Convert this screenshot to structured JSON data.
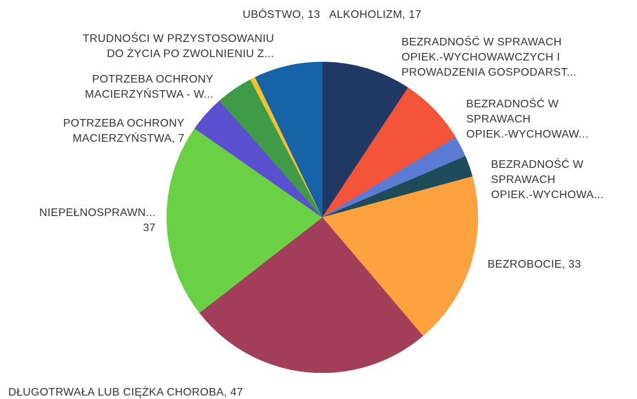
{
  "chart_data": {
    "type": "pie",
    "categories": [
      "ALKOHOLIZM, 17",
      "BEZRADNOŚĆ W SPRAWACH\nOPIEK.-WYCHOWAWCZYCH I\nPROWADZENIA GOSPODARST...",
      "BEZRADNOŚĆ W\nSPRAWACH\nOPIEK.-WYCHOWAW...",
      "BEZRADNOŚĆ W\nSPRAWACH\nOPIEK.-WYCHOWA...",
      "BEZROBOCIE, 33",
      "DŁUGOTRWAŁA LUB CIĘŻKA CHOROBA, 47",
      "NIEPEŁNOSPRAWN...\n37",
      "POTRZEBA OCHRONY\nMACIERZYŃSTWA, 7",
      "POTRZEBA OCHRONY\nMACIERZYŃSTWA - W...",
      "TRUDNOŚCI W PRZYSTOSOWANIU\nDO ŻYCIA PO ZWOLNIENIU Z...",
      "UBÓSTWO, 13"
    ],
    "values": [
      17,
      13,
      4,
      4,
      33,
      47,
      37,
      7,
      7,
      1,
      13
    ],
    "colors": [
      "#1f3864",
      "#f4553a",
      "#5b7bd5",
      "#1e4a5a",
      "#fda23f",
      "#a23d5a",
      "#6ad147",
      "#5a4fcf",
      "#3f9b48",
      "#f2c12e",
      "#1763a8"
    ]
  }
}
